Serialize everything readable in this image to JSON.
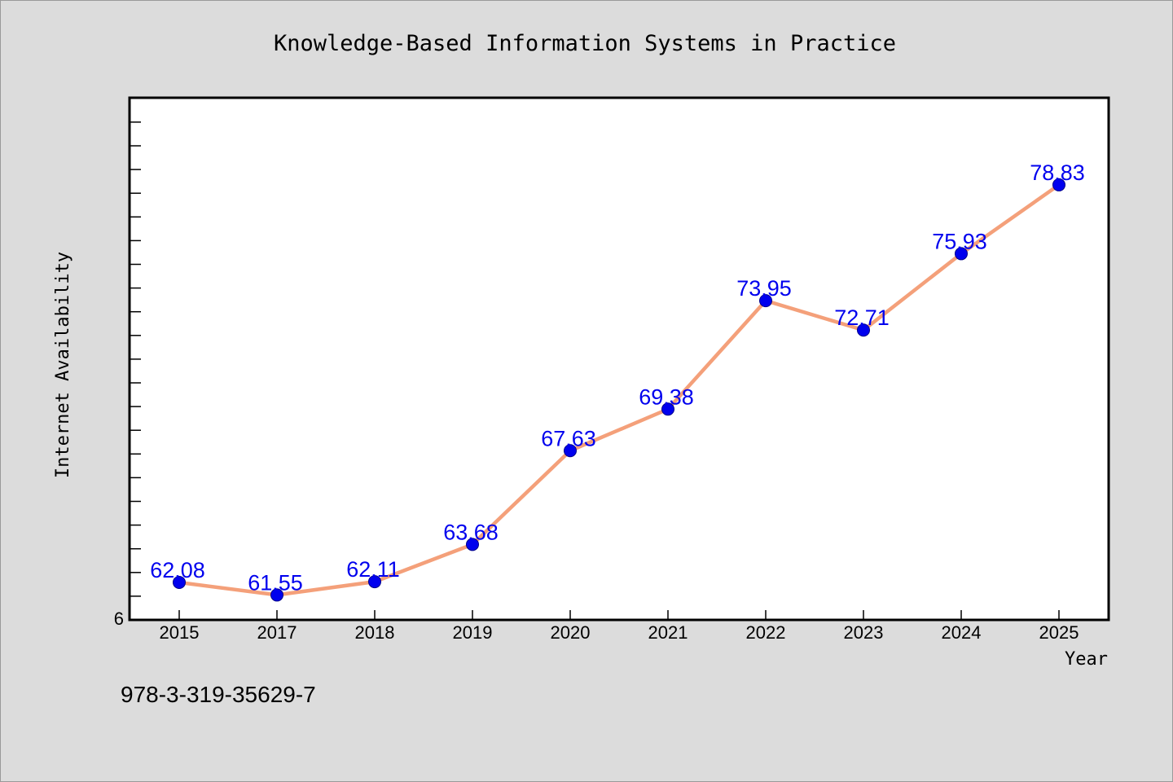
{
  "chart_data": {
    "type": "line",
    "title": "Knowledge-Based Information Systems in Practice",
    "xlabel": "Year",
    "ylabel": "Internet Availability",
    "categories": [
      "2015",
      "2017",
      "2018",
      "2019",
      "2020",
      "2021",
      "2022",
      "2023",
      "2024",
      "2025"
    ],
    "series": [
      {
        "values": [
          62.08,
          61.55,
          62.11,
          63.68,
          67.63,
          69.38,
          73.95,
          72.71,
          75.93,
          78.83
        ]
      }
    ],
    "data_labels": [
      "62.08",
      "61.55",
      "62.11",
      "63.68",
      "67.63",
      "69.38",
      "73.95",
      "72.71",
      "75.93",
      "78.83"
    ],
    "ylim": [
      60.5,
      82.5
    ],
    "y_tick_label": "6",
    "grid": false,
    "line_color": "#f4a07a",
    "marker_color": "#0000ee",
    "label_color": "#0000ee"
  },
  "footnote": "978-3-319-35629-7"
}
